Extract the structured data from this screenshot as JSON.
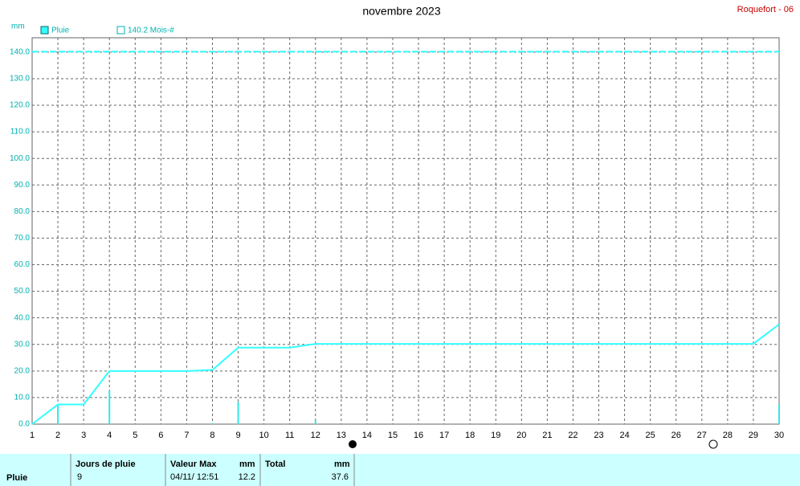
{
  "chart_data": {
    "type": "line",
    "title": "novembre 2023",
    "location": "Roquefort - 06",
    "y_label": "mm",
    "x": [
      1,
      2,
      3,
      4,
      5,
      6,
      7,
      8,
      9,
      10,
      11,
      12,
      13,
      14,
      15,
      16,
      17,
      18,
      19,
      20,
      21,
      22,
      23,
      24,
      25,
      26,
      27,
      28,
      29,
      30
    ],
    "series": [
      {
        "name": "Pluie",
        "color": "#33ffff",
        "values": [
          0,
          7.4,
          7.4,
          20.0,
          20.0,
          20.0,
          20.0,
          20.4,
          28.8,
          28.8,
          28.8,
          30.2,
          30.2,
          30.2,
          30.2,
          30.2,
          30.2,
          30.2,
          30.2,
          30.2,
          30.2,
          30.2,
          30.2,
          30.2,
          30.2,
          30.2,
          30.2,
          30.2,
          30.2,
          37.6
        ],
        "bar_color": "#33e6e6",
        "bar_values": [
          0,
          7.4,
          0,
          12.6,
          0,
          0,
          0,
          0.4,
          8.4,
          0,
          0,
          1.4,
          0,
          0,
          0,
          0,
          0,
          0,
          0,
          0,
          0,
          0,
          0,
          0,
          0,
          0,
          0,
          0,
          0,
          7.4
        ]
      }
    ],
    "reference": {
      "name": "140.2 Mois-#",
      "value": 140.2,
      "color": "#33ffff"
    },
    "xlim": [
      1,
      30
    ],
    "xticks": [
      1,
      2,
      3,
      4,
      5,
      6,
      7,
      8,
      9,
      10,
      11,
      12,
      13,
      14,
      15,
      16,
      17,
      18,
      19,
      20,
      21,
      22,
      23,
      24,
      25,
      26,
      27,
      28,
      29,
      30
    ],
    "ylim": [
      0,
      145.4
    ],
    "yticks": [
      {
        "value": 0,
        "label": "0.0"
      },
      {
        "value": 10,
        "label": "10.0"
      },
      {
        "value": 20,
        "label": "20.0"
      },
      {
        "value": 30,
        "label": "30.0"
      },
      {
        "value": 40,
        "label": "40.0"
      },
      {
        "value": 50,
        "label": "50.0"
      },
      {
        "value": 60,
        "label": "60.0"
      },
      {
        "value": 70,
        "label": "70.0"
      },
      {
        "value": 80,
        "label": "80.0"
      },
      {
        "value": 90,
        "label": "90.0"
      },
      {
        "value": 100,
        "label": "100.0"
      },
      {
        "value": 110,
        "label": "110.0"
      },
      {
        "value": 120,
        "label": "120.0"
      },
      {
        "value": 130,
        "label": "130.0"
      },
      {
        "value": 140,
        "label": "140.0"
      }
    ],
    "grid": true
  },
  "table": {
    "row_label": "Pluie",
    "headers": [
      "Jours de pluie",
      "Valeur Max",
      "mm",
      "Total",
      "mm"
    ],
    "values": [
      "9",
      "04/11/ 12:51",
      "12.2",
      "37.6"
    ]
  }
}
